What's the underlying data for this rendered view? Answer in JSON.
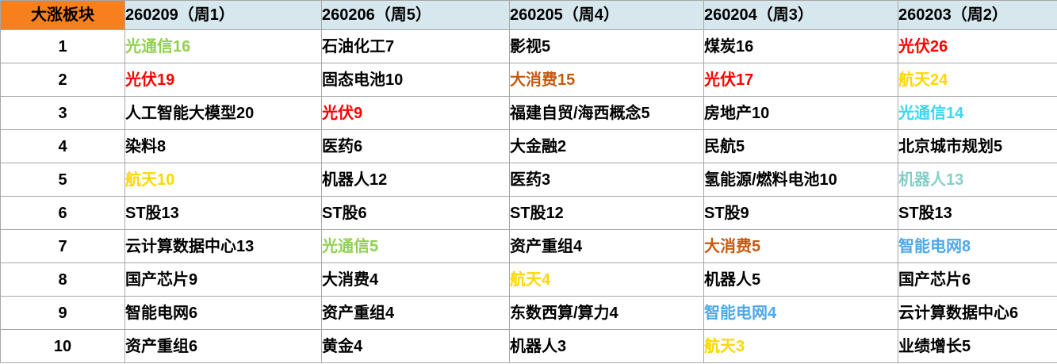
{
  "colors": {
    "header_bg": "#f7801e",
    "date_header_bg": "#d6e8ee",
    "grid": "#a6a6a6",
    "black": "#000000",
    "green": "#92d050",
    "red": "#ff0000",
    "gold": "#ffd700",
    "brown": "#c55a11",
    "cyan": "#3fd6f0",
    "teal": "#85cfc8",
    "blue": "#4fa8e8"
  },
  "chart_data": {
    "type": "table",
    "title": "大涨板块",
    "corner_label": "大涨板块",
    "row_numbers": [
      "1",
      "2",
      "3",
      "4",
      "5",
      "6",
      "7",
      "8",
      "9",
      "10"
    ],
    "columns": [
      {
        "header": "260209（周1）",
        "cells": [
          {
            "text": "光通信16",
            "color": "green"
          },
          {
            "text": "光伏19",
            "color": "red"
          },
          {
            "text": "人工智能大模型20",
            "color": "black"
          },
          {
            "text": "染料8",
            "color": "black"
          },
          {
            "text": "航天10",
            "color": "gold"
          },
          {
            "text": "ST股13",
            "color": "black"
          },
          {
            "text": "云计算数据中心13",
            "color": "black"
          },
          {
            "text": "国产芯片9",
            "color": "black"
          },
          {
            "text": "智能电网6",
            "color": "black"
          },
          {
            "text": "资产重组6",
            "color": "black"
          }
        ]
      },
      {
        "header": "260206（周5）",
        "cells": [
          {
            "text": "石油化工7",
            "color": "black"
          },
          {
            "text": "固态电池10",
            "color": "black"
          },
          {
            "text": "光伏9",
            "color": "red"
          },
          {
            "text": "医药6",
            "color": "black"
          },
          {
            "text": "机器人12",
            "color": "black"
          },
          {
            "text": "ST股6",
            "color": "black"
          },
          {
            "text": "光通信5",
            "color": "green"
          },
          {
            "text": "大消费4",
            "color": "black"
          },
          {
            "text": "资产重组4",
            "color": "black"
          },
          {
            "text": "黄金4",
            "color": "black"
          }
        ]
      },
      {
        "header": "260205（周4）",
        "cells": [
          {
            "text": "影视5",
            "color": "black"
          },
          {
            "text": "大消费15",
            "color": "brown"
          },
          {
            "text": "福建自贸/海西概念5",
            "color": "black"
          },
          {
            "text": "大金融2",
            "color": "black"
          },
          {
            "text": "医药3",
            "color": "black"
          },
          {
            "text": "ST股12",
            "color": "black"
          },
          {
            "text": "资产重组4",
            "color": "black"
          },
          {
            "text": "航天4",
            "color": "gold"
          },
          {
            "text": "东数西算/算力4",
            "color": "black"
          },
          {
            "text": "机器人3",
            "color": "black"
          }
        ]
      },
      {
        "header": "260204（周3）",
        "cells": [
          {
            "text": "煤炭16",
            "color": "black"
          },
          {
            "text": "光伏17",
            "color": "red"
          },
          {
            "text": "房地产10",
            "color": "black"
          },
          {
            "text": "民航5",
            "color": "black"
          },
          {
            "text": "氢能源/燃料电池10",
            "color": "black"
          },
          {
            "text": "ST股9",
            "color": "black"
          },
          {
            "text": "大消费5",
            "color": "brown"
          },
          {
            "text": "机器人5",
            "color": "black"
          },
          {
            "text": "智能电网4",
            "color": "blue"
          },
          {
            "text": "航天3",
            "color": "gold"
          }
        ]
      },
      {
        "header": "260203（周2）",
        "cells": [
          {
            "text": "光伏26",
            "color": "red"
          },
          {
            "text": "航天24",
            "color": "gold"
          },
          {
            "text": "光通信14",
            "color": "cyan"
          },
          {
            "text": "北京城市规划5",
            "color": "black"
          },
          {
            "text": "机器人13",
            "color": "teal"
          },
          {
            "text": "ST股13",
            "color": "black"
          },
          {
            "text": "智能电网8",
            "color": "blue"
          },
          {
            "text": "国产芯片6",
            "color": "black"
          },
          {
            "text": "云计算数据中心6",
            "color": "black"
          },
          {
            "text": "业绩增长5",
            "color": "black"
          }
        ]
      }
    ]
  }
}
